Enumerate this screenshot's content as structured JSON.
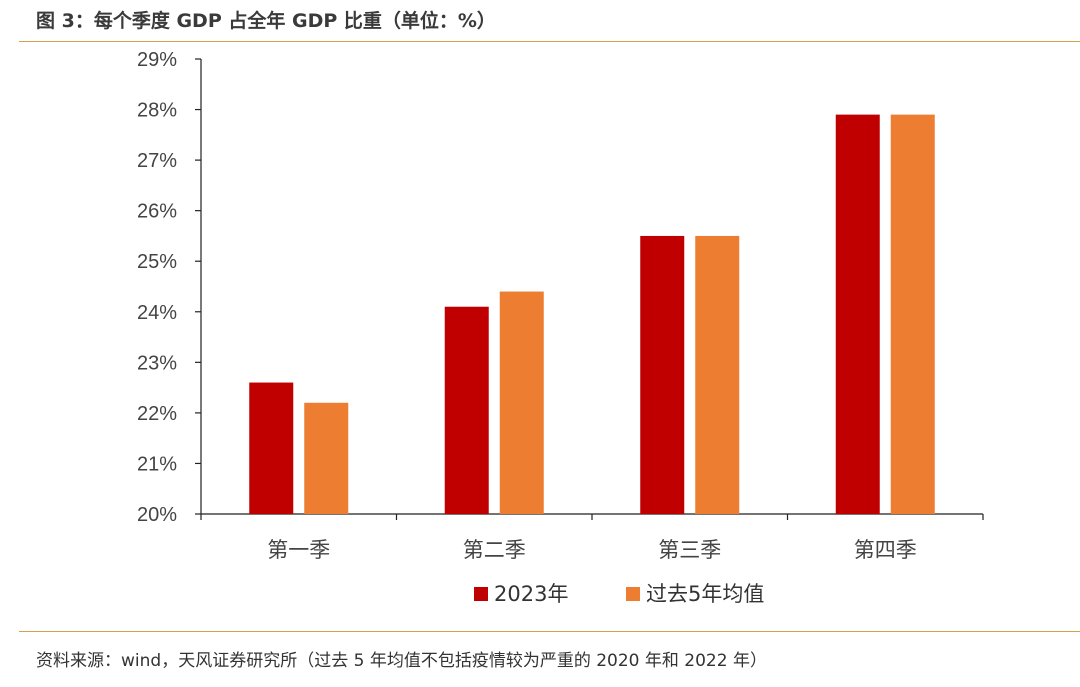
{
  "figure": {
    "title": "图 3：每个季度 GDP 占全年 GDP 比重（单位：%）",
    "source": "资料来源：wind，天风证券研究所（过去 5 年均值不包括疫情较为严重的 2020 年和 2022 年）"
  },
  "colors": {
    "series_2023": "#c00000",
    "series_avg": "#ed7d31",
    "rule": "#d4a24c",
    "axis": "#222222"
  },
  "chart_data": {
    "type": "bar",
    "title": "",
    "xlabel": "",
    "ylabel": "",
    "categories": [
      "第一季",
      "第二季",
      "第三季",
      "第四季"
    ],
    "ylim": [
      20,
      29
    ],
    "yticks": [
      "20%",
      "21%",
      "22%",
      "23%",
      "24%",
      "25%",
      "26%",
      "27%",
      "28%",
      "29%"
    ],
    "grid": false,
    "legend_position": "bottom",
    "series": [
      {
        "name": "2023年",
        "values": [
          22.6,
          24.1,
          25.5,
          27.9
        ]
      },
      {
        "name": "过去5年均值",
        "values": [
          22.2,
          24.4,
          25.5,
          27.9
        ]
      }
    ]
  }
}
